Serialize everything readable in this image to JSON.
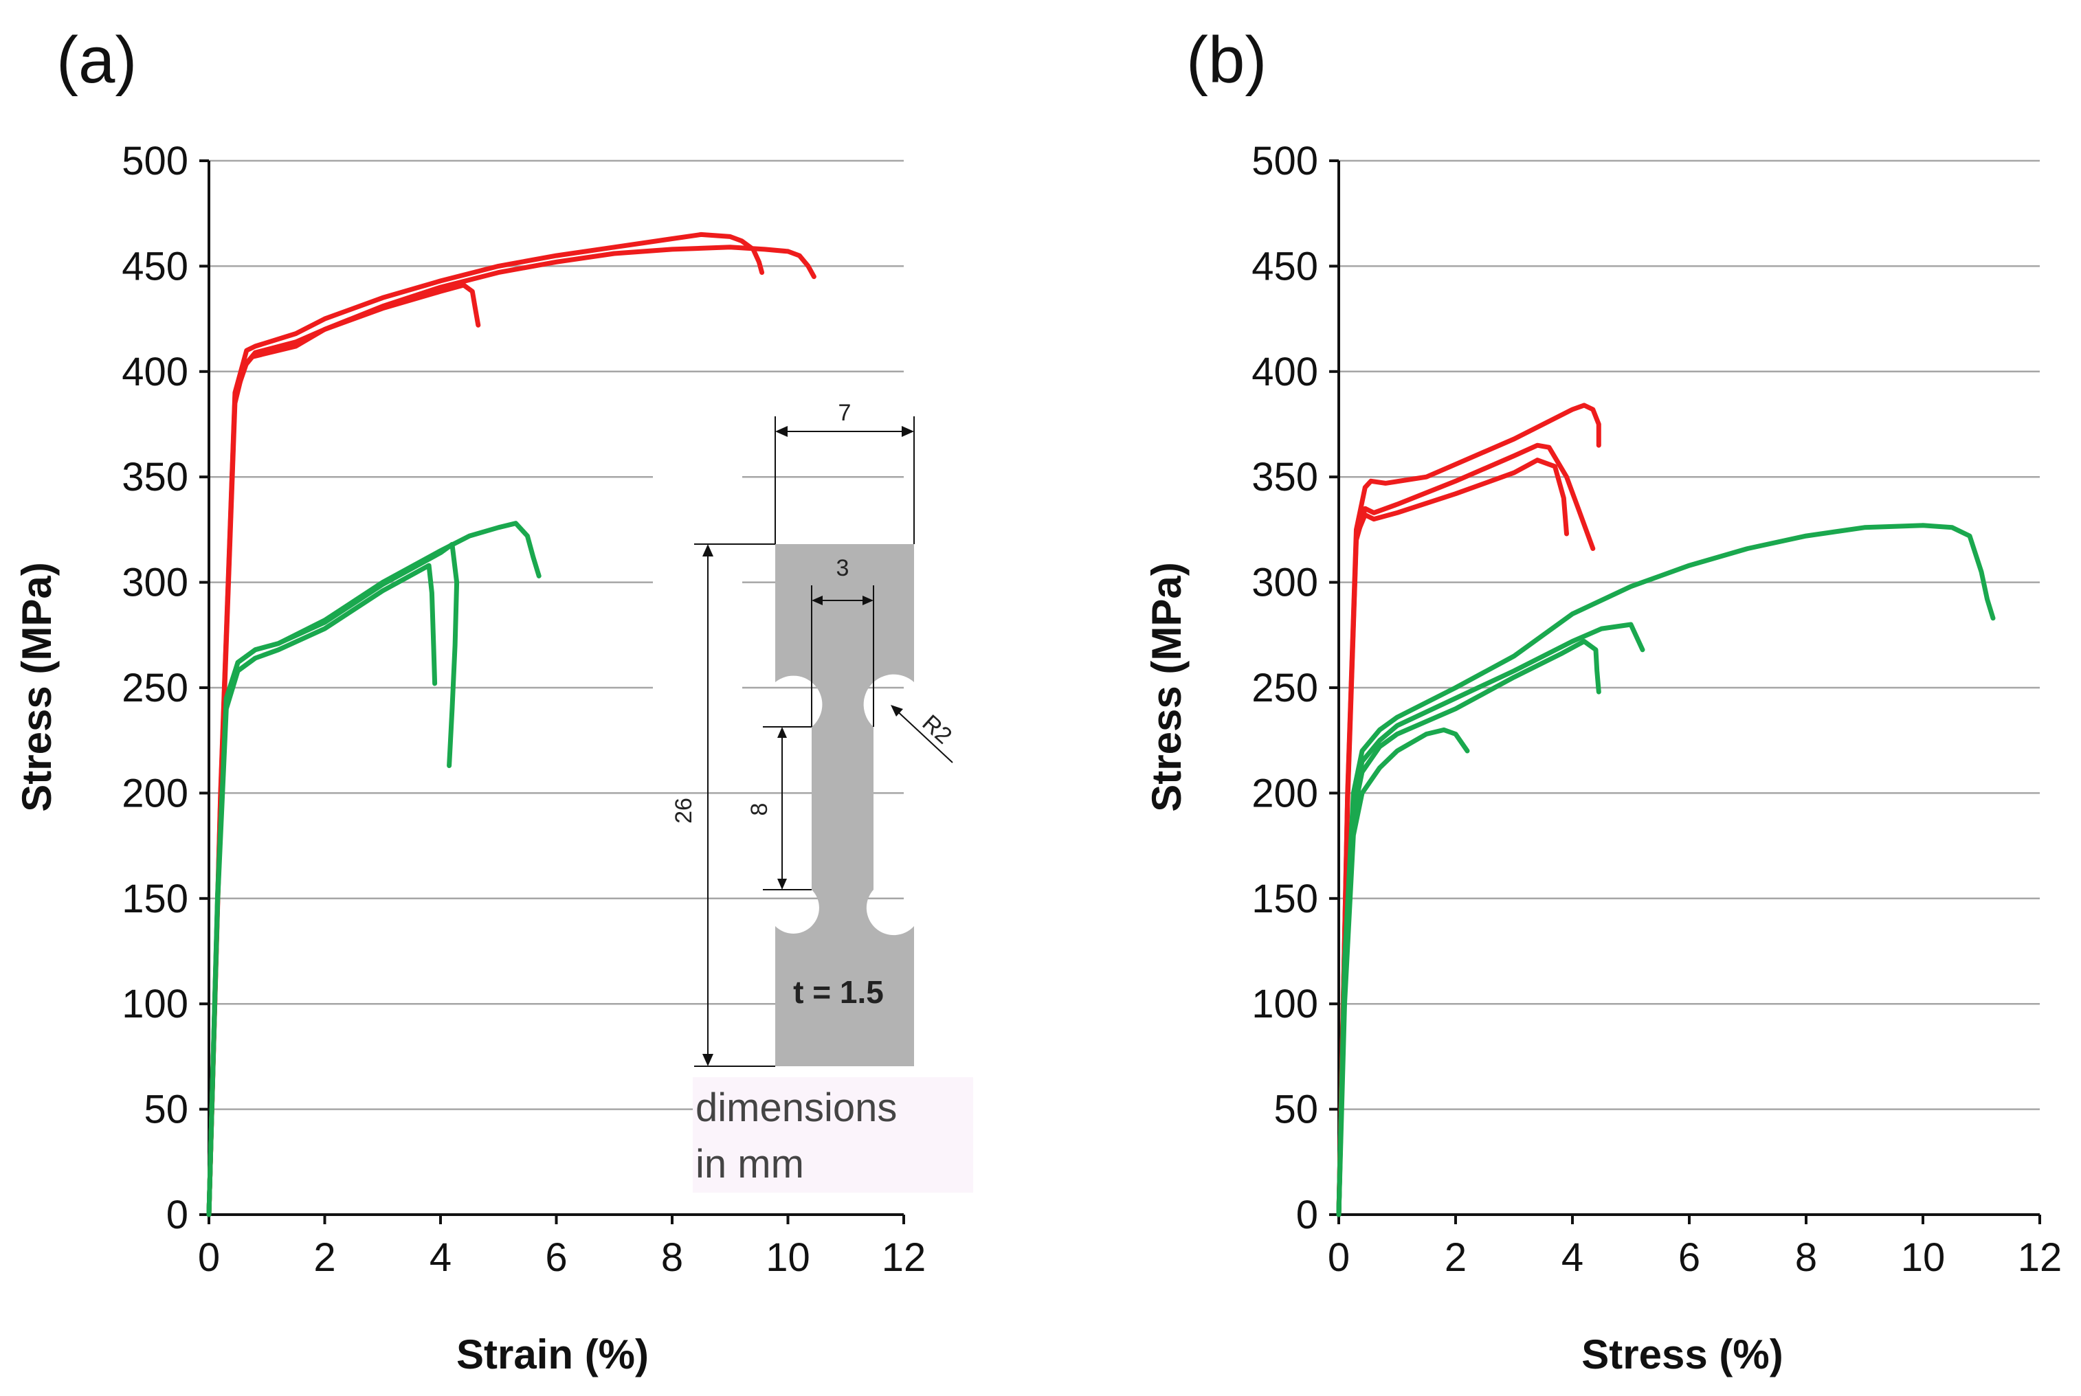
{
  "colors": {
    "red": "#ee1c1c",
    "green": "#1aa84e",
    "grid": "#a6a6a6",
    "specimen": "#b3b3b3",
    "note_bg": "#fbf4fb"
  },
  "chart_data": [
    {
      "panel": "(a)",
      "type": "line",
      "xlabel": "Strain (%)",
      "ylabel": "Stress (MPa)",
      "xlim": [
        0,
        12
      ],
      "ylim": [
        0,
        500
      ],
      "xticks": [
        "0",
        "2",
        "4",
        "6",
        "8",
        "10",
        "12"
      ],
      "yticks": [
        "0",
        "50",
        "100",
        "150",
        "200",
        "250",
        "300",
        "350",
        "400",
        "450",
        "500"
      ],
      "grid": "horizontal",
      "series": [
        {
          "name": "red-1",
          "color": "red",
          "x": [
            0,
            0.2,
            0.45,
            0.65,
            0.8,
            1.5,
            2,
            3,
            4,
            5,
            6,
            7,
            8,
            8.5,
            9,
            9.2,
            9.4,
            9.5,
            9.55
          ],
          "y": [
            0,
            200,
            390,
            410,
            412,
            418,
            425,
            435,
            443,
            450,
            455,
            459,
            463,
            465,
            464,
            462,
            458,
            452,
            447
          ]
        },
        {
          "name": "red-2",
          "color": "red",
          "x": [
            0,
            0.2,
            0.45,
            0.6,
            0.75,
            1.5,
            2,
            3,
            4,
            5,
            6,
            7,
            8,
            9,
            9.6,
            10,
            10.2,
            10.35,
            10.45
          ],
          "y": [
            0,
            195,
            385,
            402,
            407,
            412,
            420,
            431,
            440,
            447,
            452,
            456,
            458,
            459,
            458,
            457,
            455,
            450,
            445
          ]
        },
        {
          "name": "red-3",
          "color": "red",
          "x": [
            0,
            0.2,
            0.45,
            0.65,
            0.8,
            1.5,
            2,
            3,
            4,
            4.4,
            4.55,
            4.6,
            4.65
          ],
          "y": [
            0,
            198,
            388,
            404,
            409,
            414,
            420,
            430,
            438,
            441,
            438,
            430,
            422
          ]
        },
        {
          "name": "green-1",
          "color": "green",
          "x": [
            0,
            0.15,
            0.3,
            0.5,
            0.8,
            1.2,
            2,
            3,
            4,
            4.5,
            5,
            5.3,
            5.5,
            5.6,
            5.7
          ],
          "y": [
            0,
            150,
            245,
            262,
            268,
            271,
            282,
            300,
            315,
            322,
            326,
            328,
            322,
            312,
            303
          ]
        },
        {
          "name": "green-2",
          "color": "green",
          "x": [
            0,
            0.15,
            0.3,
            0.5,
            0.8,
            1.2,
            2,
            3,
            3.6,
            3.8,
            3.85,
            3.88,
            3.9
          ],
          "y": [
            0,
            148,
            240,
            258,
            264,
            268,
            278,
            296,
            305,
            308,
            295,
            270,
            252
          ]
        },
        {
          "name": "green-3",
          "color": "green",
          "x": [
            0,
            0.15,
            0.3,
            0.5,
            0.8,
            1.2,
            2,
            3,
            4,
            4.2,
            4.28,
            4.25,
            4.2,
            4.15
          ],
          "y": [
            0,
            152,
            244,
            262,
            268,
            271,
            281,
            299,
            314,
            318,
            300,
            270,
            240,
            213
          ]
        }
      ]
    },
    {
      "panel": "(b)",
      "type": "line",
      "xlabel": "Stress (%)",
      "ylabel": "Stress (MPa)",
      "xlim": [
        0,
        12
      ],
      "ylim": [
        0,
        500
      ],
      "xticks": [
        "0",
        "2",
        "4",
        "6",
        "8",
        "10",
        "12"
      ],
      "yticks": [
        "0",
        "50",
        "100",
        "150",
        "200",
        "250",
        "300",
        "350",
        "400",
        "450",
        "500"
      ],
      "grid": "horizontal",
      "series": [
        {
          "name": "red-1",
          "color": "red",
          "x": [
            0,
            0.15,
            0.3,
            0.45,
            0.55,
            0.8,
            1.5,
            2,
            3,
            3.5,
            4,
            4.2,
            4.35,
            4.45,
            4.45
          ],
          "y": [
            0,
            200,
            325,
            345,
            348,
            347,
            350,
            356,
            368,
            375,
            382,
            384,
            382,
            375,
            365
          ]
        },
        {
          "name": "red-2",
          "color": "red",
          "x": [
            0,
            0.15,
            0.3,
            0.45,
            0.6,
            1,
            2,
            3,
            3.4,
            3.6,
            3.9,
            4.1,
            4.35
          ],
          "y": [
            0,
            195,
            320,
            335,
            333,
            337,
            348,
            360,
            365,
            364,
            350,
            335,
            316
          ]
        },
        {
          "name": "red-3",
          "color": "red",
          "x": [
            0,
            0.15,
            0.3,
            0.45,
            0.6,
            1,
            2,
            3,
            3.4,
            3.7,
            3.85,
            3.9
          ],
          "y": [
            0,
            198,
            322,
            332,
            330,
            333,
            342,
            352,
            358,
            355,
            340,
            323
          ]
        },
        {
          "name": "green-1",
          "color": "green",
          "x": [
            0,
            0.1,
            0.25,
            0.4,
            0.7,
            1,
            2,
            3,
            4,
            5,
            6,
            7,
            8,
            9,
            10,
            10.5,
            10.8,
            11,
            11.1,
            11.2
          ],
          "y": [
            0,
            120,
            200,
            220,
            230,
            236,
            250,
            265,
            285,
            298,
            308,
            316,
            322,
            326,
            327,
            326,
            322,
            305,
            292,
            283
          ]
        },
        {
          "name": "green-2",
          "color": "green",
          "x": [
            0,
            0.1,
            0.25,
            0.4,
            0.7,
            1,
            2,
            3,
            4,
            4.5,
            5,
            5.2
          ],
          "y": [
            0,
            115,
            195,
            215,
            225,
            232,
            245,
            258,
            272,
            278,
            280,
            268
          ]
        },
        {
          "name": "green-3",
          "color": "green",
          "x": [
            0,
            0.1,
            0.25,
            0.4,
            0.7,
            1,
            2,
            3,
            3.8,
            4.2,
            4.4,
            4.42,
            4.45
          ],
          "y": [
            0,
            112,
            190,
            210,
            222,
            228,
            240,
            255,
            266,
            272,
            268,
            258,
            248
          ]
        },
        {
          "name": "green-4",
          "color": "green",
          "x": [
            0,
            0.1,
            0.25,
            0.4,
            0.7,
            1,
            1.5,
            1.8,
            2,
            2.1,
            2.2
          ],
          "y": [
            0,
            100,
            180,
            200,
            212,
            220,
            228,
            230,
            228,
            224,
            220
          ]
        }
      ]
    }
  ],
  "inset": {
    "overall_width": "7",
    "gauge_width": "3",
    "overall_length": "26",
    "gauge_length": "8",
    "radius": "R2",
    "thickness": "t = 1.5",
    "note_line1": "dimensions",
    "note_line2": "in mm"
  }
}
